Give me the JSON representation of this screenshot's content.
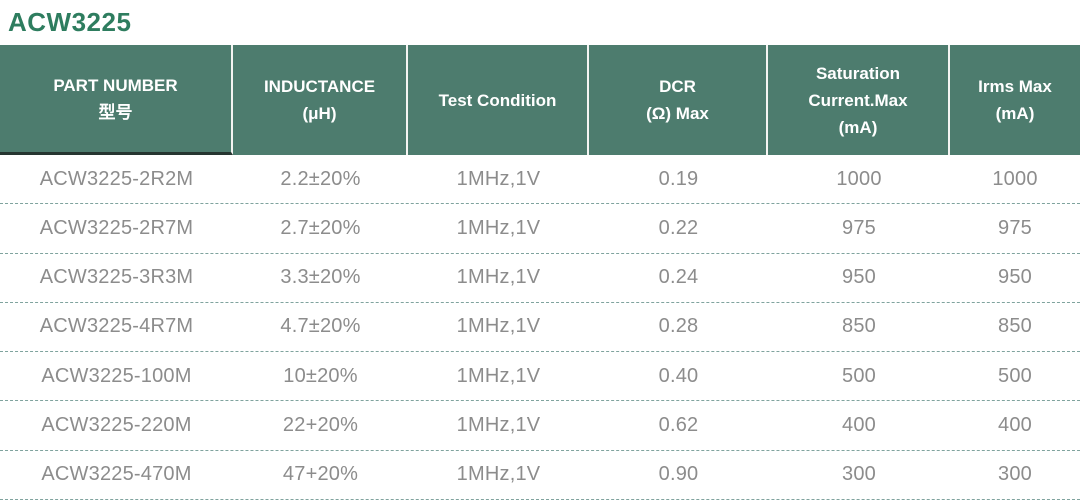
{
  "page": {
    "title": "ACW3225"
  },
  "table": {
    "columns": [
      {
        "id": "part_number",
        "lines": [
          "PART NUMBER",
          "型号"
        ]
      },
      {
        "id": "inductance",
        "lines": [
          "INDUCTANCE",
          "(μH)"
        ]
      },
      {
        "id": "test_condition",
        "lines": [
          "Test Condition"
        ]
      },
      {
        "id": "dcr_max",
        "lines": [
          "DCR",
          "(Ω) Max"
        ]
      },
      {
        "id": "saturation_current",
        "lines": [
          "Saturation",
          "Current.Max",
          "(mA)"
        ]
      },
      {
        "id": "irms_max",
        "lines": [
          "Irms Max",
          "(mA)"
        ]
      }
    ],
    "rows": [
      {
        "cells": [
          "ACW3225-2R2M",
          "2.2±20%",
          "1MHz,1V",
          "0.19",
          "1000",
          "1000"
        ]
      },
      {
        "cells": [
          "ACW3225-2R7M",
          "2.7±20%",
          "1MHz,1V",
          "0.22",
          "975",
          "975"
        ]
      },
      {
        "cells": [
          "ACW3225-3R3M",
          "3.3±20%",
          "1MHz,1V",
          "0.24",
          "950",
          "950"
        ]
      },
      {
        "cells": [
          "ACW3225-4R7M",
          "4.7±20%",
          "1MHz,1V",
          "0.28",
          "850",
          "850"
        ]
      },
      {
        "cells": [
          "ACW3225-100M",
          "10±20%",
          "1MHz,1V",
          "0.40",
          "500",
          "500"
        ]
      },
      {
        "cells": [
          "ACW3225-220M",
          "22+20%",
          "1MHz,1V",
          "0.62",
          "400",
          "400"
        ]
      },
      {
        "cells": [
          "ACW3225-470M",
          "47+20%",
          "1MHz,1V",
          "0.90",
          "300",
          "300"
        ]
      }
    ]
  },
  "colors": {
    "title_green": "#2e7d5f",
    "header_background": "#4d7c6e",
    "header_text": "#ffffff",
    "header_cell_divider": "#f4f4f2",
    "first_header_underline": "#263530",
    "body_text": "#8c8c8c",
    "row_dashed_divider": "#7fa39e"
  }
}
